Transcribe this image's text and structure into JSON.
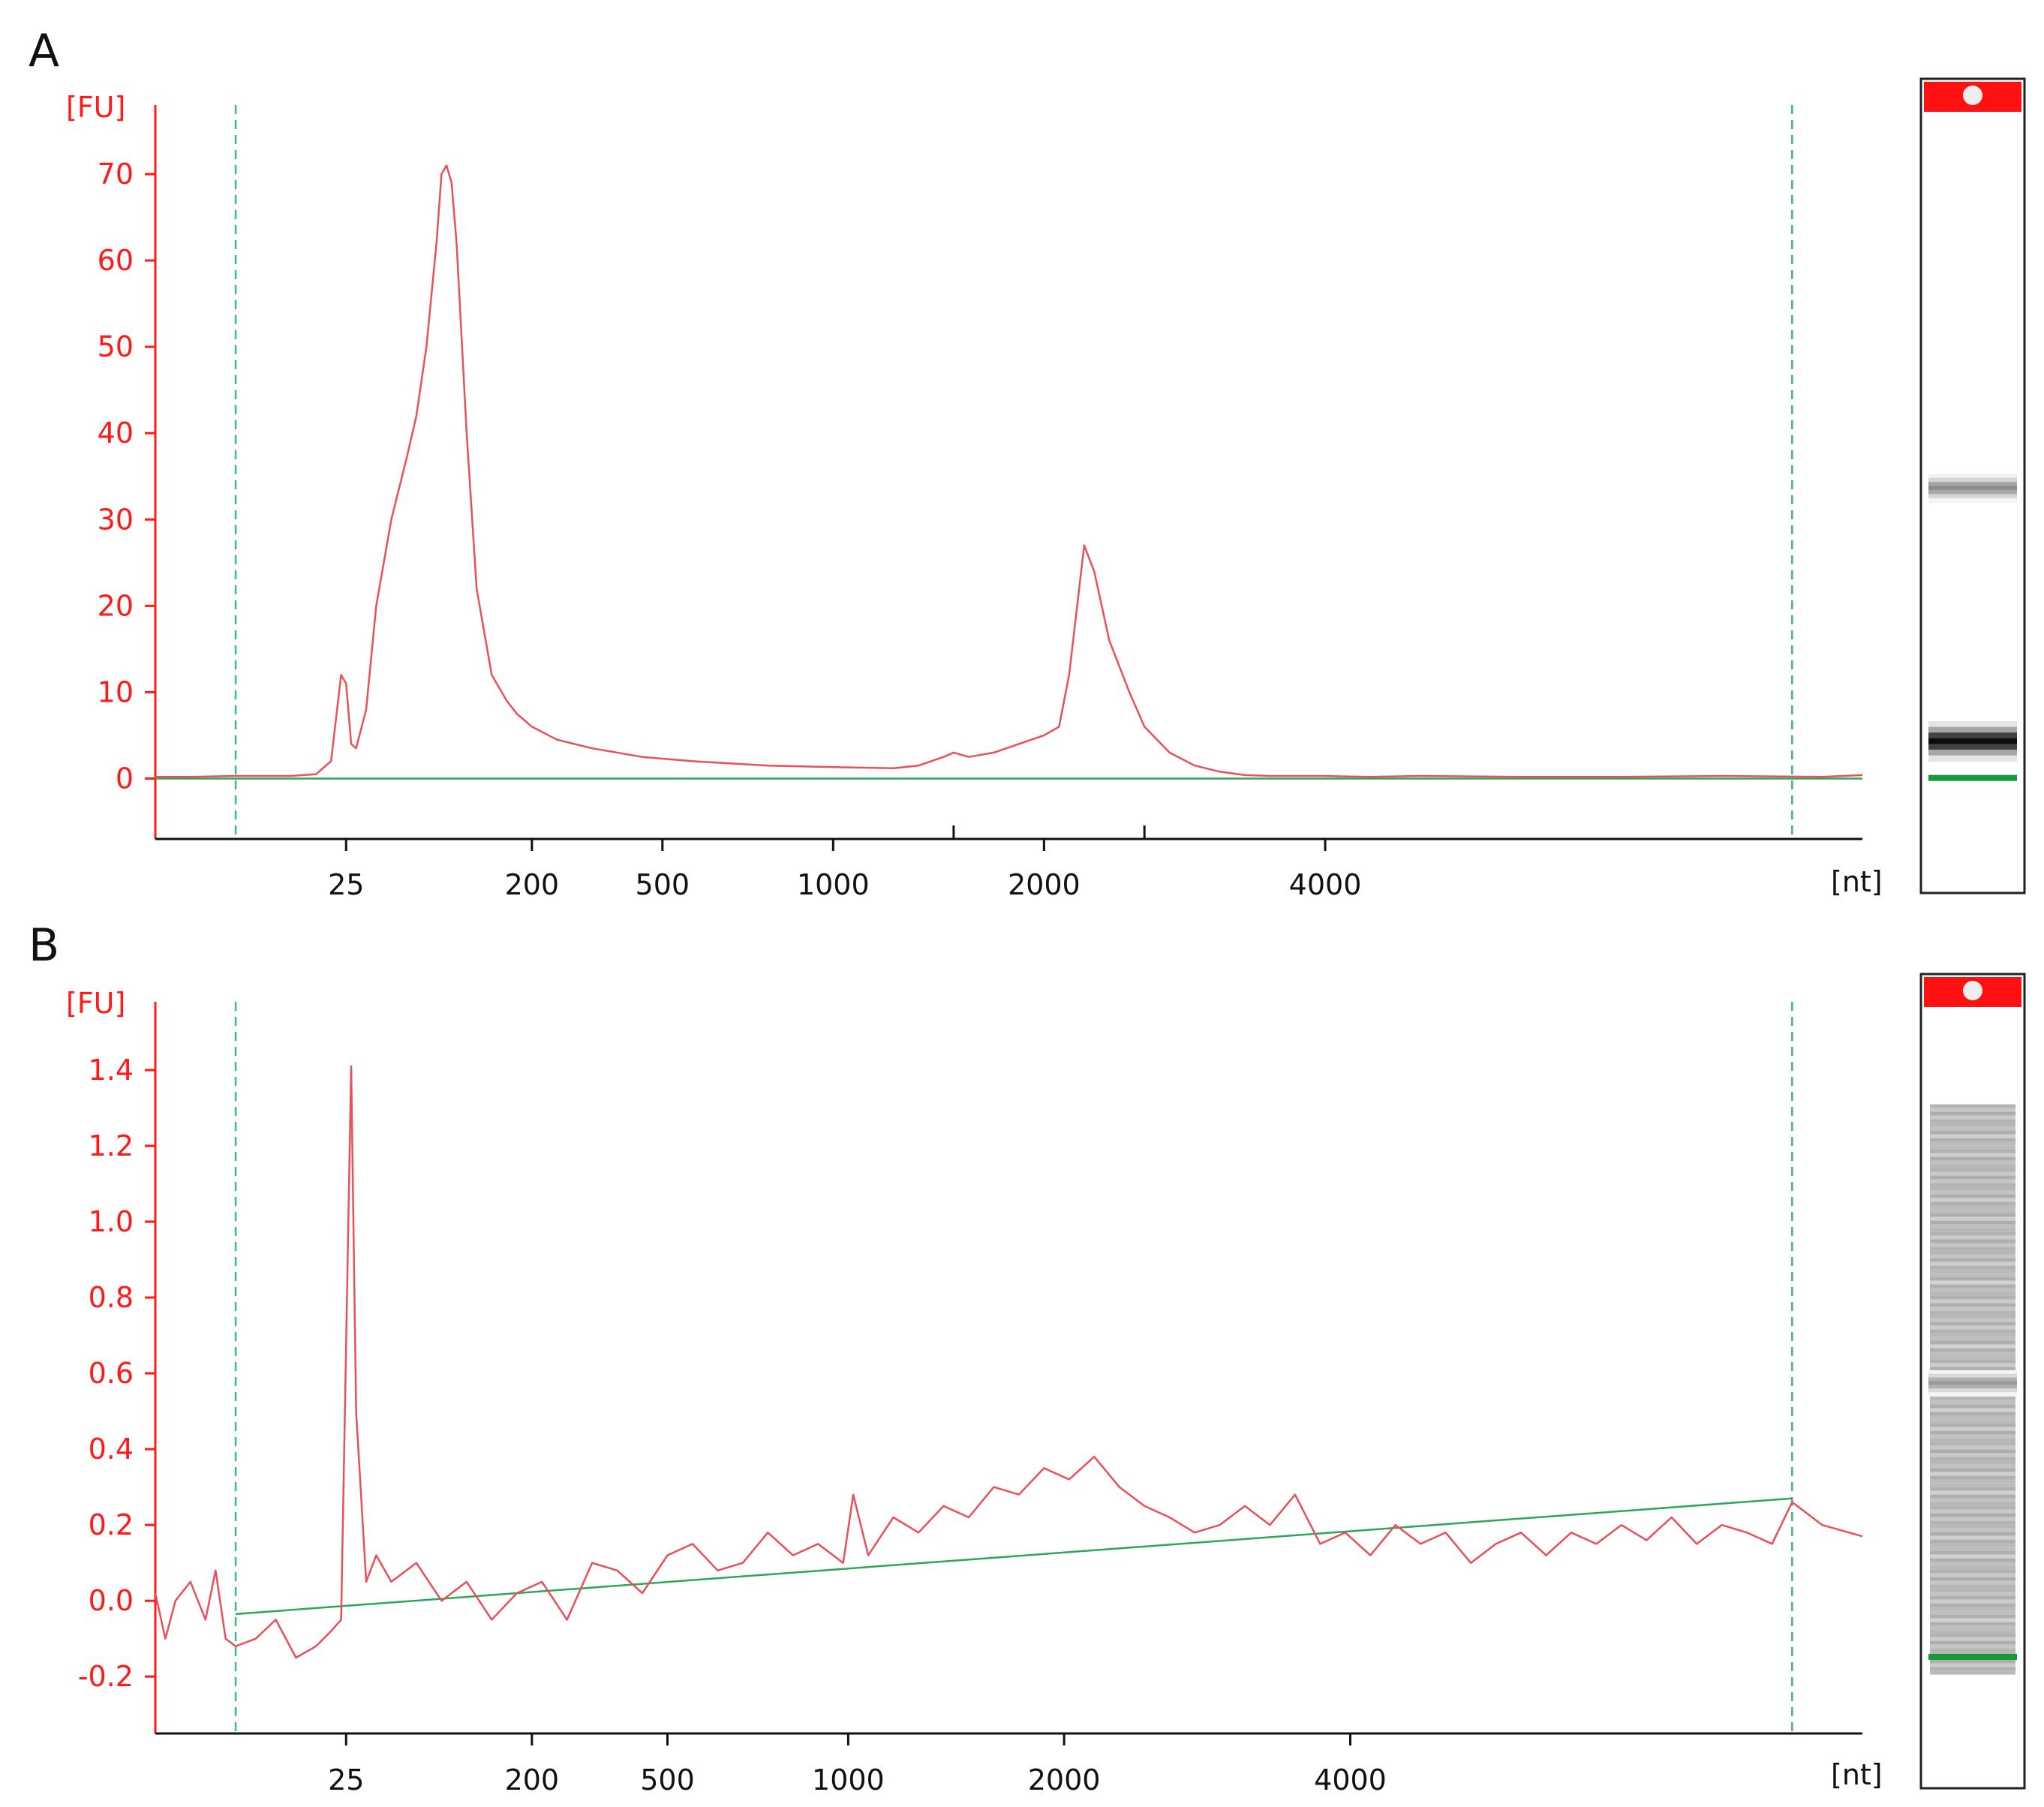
{
  "figure": {
    "colors": {
      "trace": "#e8505a",
      "axis": "#ff1a1a",
      "baseline": "#2ca85a",
      "marker_line": "#3cb878",
      "xaxis": "#111111",
      "lane_top": "#ff1111",
      "lane_marker": "#149a3a"
    }
  },
  "chart_data": [
    {
      "panel_label": "A",
      "type": "line",
      "ylabel": "[FU]",
      "xlabel": "[nt]",
      "y_ticks": [
        "70",
        "60",
        "50",
        "40",
        "30",
        "20",
        "10",
        "0"
      ],
      "y_tick_values": [
        70,
        60,
        50,
        40,
        30,
        20,
        10,
        0
      ],
      "ylim": [
        -7,
        78
      ],
      "x_ticks": [
        "25",
        "200",
        "500",
        "1000",
        "2000",
        "4000"
      ],
      "x_tick_times_s": [
        26.6,
        30.3,
        32.9,
        36.3,
        40.5,
        46.1
      ],
      "x_extra_ticks_s": [
        38.7,
        42.5
      ],
      "x_range_time_s": [
        22.8,
        56.8
      ],
      "marker_lines_time_s": [
        24.4,
        55.4
      ],
      "baseline": [
        [
          22.8,
          0
        ],
        [
          56.8,
          0
        ]
      ],
      "series": [
        {
          "x_time_s": [
            22.8,
            23.5,
            24.4,
            25.5,
            26.0,
            26.3,
            26.5,
            26.6,
            26.7,
            26.8,
            27.0,
            27.2,
            27.5,
            27.8,
            28.0,
            28.2,
            28.4,
            28.5,
            28.6,
            28.7,
            28.8,
            29.0,
            29.2,
            29.5,
            29.8,
            30.0,
            30.3,
            30.8,
            31.5,
            32.5,
            33.5,
            35.0,
            36.5,
            37.5,
            38.0,
            38.5,
            38.7,
            39.0,
            39.5,
            40.0,
            40.5,
            40.8,
            41.0,
            41.2,
            41.3,
            41.5,
            41.8,
            42.2,
            42.5,
            43.0,
            43.5,
            44.0,
            44.5,
            45.0,
            46.0,
            47.0,
            48.0,
            50.0,
            52.0,
            54.0,
            56.0,
            56.8
          ],
          "y": [
            0.2,
            0.2,
            0.3,
            0.3,
            0.5,
            2.0,
            12.0,
            11.0,
            4.0,
            3.5,
            8.0,
            20.0,
            30.0,
            37.0,
            42.0,
            50.0,
            62.0,
            70.0,
            71.0,
            69.0,
            62.0,
            40.0,
            22.0,
            12.0,
            9.0,
            7.5,
            6.0,
            4.5,
            3.5,
            2.5,
            2.0,
            1.5,
            1.3,
            1.2,
            1.5,
            2.5,
            3.0,
            2.5,
            3.0,
            4.0,
            5.0,
            6.0,
            12.0,
            22.0,
            27.0,
            24.0,
            16.0,
            10.0,
            6.0,
            3.0,
            1.5,
            0.8,
            0.4,
            0.3,
            0.3,
            0.2,
            0.3,
            0.2,
            0.2,
            0.3,
            0.2,
            0.4
          ]
        }
      ]
    },
    {
      "panel_label": "B",
      "type": "line",
      "ylabel": "[FU]",
      "xlabel": "[nt]",
      "y_ticks": [
        "1.4",
        "1.2",
        "1.0",
        "0.8",
        "0.6",
        "0.4",
        "0.2",
        "0.0",
        "-0.2"
      ],
      "y_tick_values": [
        1.4,
        1.2,
        1.0,
        0.8,
        0.6,
        0.4,
        0.2,
        0.0,
        -0.2
      ],
      "ylim": [
        -0.35,
        1.58
      ],
      "x_ticks": [
        "25",
        "200",
        "500",
        "1000",
        "2000",
        "4000"
      ],
      "x_tick_times_s": [
        26.6,
        30.3,
        33.0,
        36.6,
        40.9,
        46.6
      ],
      "x_range_time_s": [
        22.8,
        56.8
      ],
      "marker_lines_time_s": [
        24.4,
        55.4
      ],
      "baseline": [
        [
          24.4,
          -0.035
        ],
        [
          55.4,
          0.27
        ]
      ],
      "series": [
        {
          "x_time_s": [
            22.8,
            23.0,
            23.2,
            23.5,
            23.8,
            24.0,
            24.2,
            24.4,
            24.8,
            25.2,
            25.6,
            26.0,
            26.3,
            26.5,
            26.7,
            26.8,
            27.0,
            27.2,
            27.5,
            28.0,
            28.5,
            29.0,
            29.5,
            30.0,
            30.5,
            31.0,
            31.5,
            32.0,
            32.5,
            33.0,
            33.5,
            34.0,
            34.5,
            35.0,
            35.5,
            36.0,
            36.5,
            36.7,
            37.0,
            37.5,
            38.0,
            38.5,
            39.0,
            39.5,
            40.0,
            40.5,
            41.0,
            41.5,
            42.0,
            42.5,
            43.0,
            43.5,
            44.0,
            44.5,
            45.0,
            45.5,
            46.0,
            46.5,
            47.0,
            47.5,
            48.0,
            48.5,
            49.0,
            49.5,
            50.0,
            50.5,
            51.0,
            51.5,
            52.0,
            52.5,
            53.0,
            53.5,
            54.0,
            54.5,
            55.0,
            55.4,
            56.0,
            56.8
          ],
          "y": [
            0.02,
            -0.1,
            0.0,
            0.05,
            -0.05,
            0.08,
            -0.1,
            -0.12,
            -0.1,
            -0.05,
            -0.15,
            -0.12,
            -0.08,
            -0.05,
            1.41,
            0.5,
            0.05,
            0.12,
            0.05,
            0.1,
            0.0,
            0.05,
            -0.05,
            0.02,
            0.05,
            -0.05,
            0.1,
            0.08,
            0.02,
            0.12,
            0.15,
            0.08,
            0.1,
            0.18,
            0.12,
            0.15,
            0.1,
            0.28,
            0.12,
            0.22,
            0.18,
            0.25,
            0.22,
            0.3,
            0.28,
            0.35,
            0.32,
            0.38,
            0.3,
            0.25,
            0.22,
            0.18,
            0.2,
            0.25,
            0.2,
            0.28,
            0.15,
            0.18,
            0.12,
            0.2,
            0.15,
            0.18,
            0.1,
            0.15,
            0.18,
            0.12,
            0.18,
            0.15,
            0.2,
            0.16,
            0.22,
            0.15,
            0.2,
            0.18,
            0.15,
            0.26,
            0.2,
            0.17
          ]
        }
      ]
    }
  ],
  "gel_lanes": [
    {
      "panel": "A",
      "bands": [
        {
          "pos": 0.5,
          "darkness": 0.45,
          "width": 0.02
        },
        {
          "pos": 0.81,
          "darkness": 0.95,
          "width": 0.028
        }
      ],
      "marker_pos": 0.855
    },
    {
      "panel": "B",
      "smear": {
        "from": 0.16,
        "to": 0.86,
        "darkness": 0.32
      },
      "bands": [
        {
          "pos": 0.5,
          "darkness": 0.4,
          "width": 0.018
        }
      ],
      "marker_pos": 0.835
    }
  ]
}
